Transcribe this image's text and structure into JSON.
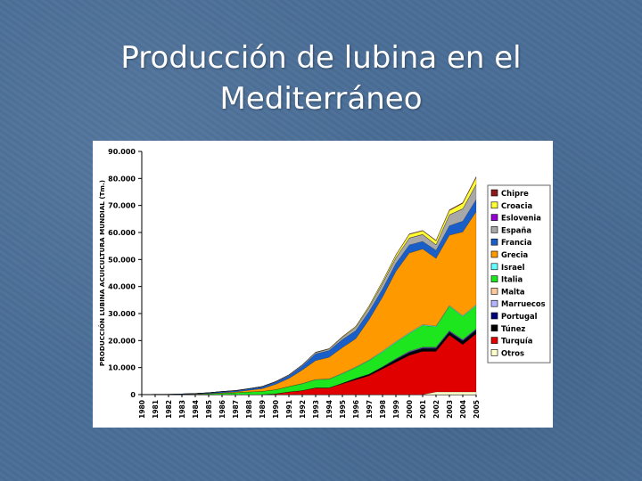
{
  "slide": {
    "title_line1": "Producción de lubina en el",
    "title_line2": "Mediterráneo"
  },
  "chart_data": {
    "type": "area",
    "stacked": true,
    "title": "",
    "xlabel": "",
    "ylabel": "PRODUCCIÓN LUBINA ACUICULTURA MUNDIAL (Tm.)",
    "ylim": [
      0,
      90000
    ],
    "yticks": [
      0,
      10000,
      20000,
      30000,
      40000,
      50000,
      60000,
      70000,
      80000,
      90000
    ],
    "ytick_labels": [
      "0",
      "10.000",
      "20.000",
      "30.000",
      "40.000",
      "50.000",
      "60.000",
      "70.000",
      "80.000",
      "90.000"
    ],
    "grid": false,
    "legend": "right",
    "categories": [
      "1980",
      "1981",
      "1982",
      "1983",
      "1984",
      "1985",
      "1986",
      "1987",
      "1988",
      "1989",
      "1990",
      "1991",
      "1992",
      "1993",
      "1994",
      "1995",
      "1996",
      "1997",
      "1998",
      "1999",
      "2000",
      "2001",
      "2002",
      "2003",
      "2004",
      "2005"
    ],
    "series": [
      {
        "name": "Otros",
        "color": "#ffffcc",
        "values": [
          0,
          0,
          0,
          0,
          0,
          0,
          0,
          0,
          0,
          0,
          0,
          0,
          0,
          0,
          0,
          0,
          0,
          0,
          0,
          0,
          0,
          0,
          1000,
          1000,
          1000,
          1000
        ]
      },
      {
        "name": "Turquía",
        "color": "#e00000",
        "values": [
          0,
          0,
          0,
          0,
          0,
          0,
          0,
          0,
          0,
          0,
          300,
          1000,
          1500,
          2500,
          2500,
          4000,
          5500,
          7000,
          9500,
          12000,
          14500,
          16000,
          15000,
          21000,
          17500,
          21500
        ]
      },
      {
        "name": "Túnez",
        "color": "#000000",
        "values": [
          0,
          0,
          0,
          0,
          0,
          0,
          0,
          0,
          0,
          0,
          0,
          0,
          0,
          0,
          0,
          200,
          300,
          400,
          500,
          800,
          1000,
          1000,
          1000,
          1000,
          1200,
          1200
        ]
      },
      {
        "name": "Portugal",
        "color": "#00007a",
        "values": [
          0,
          0,
          0,
          0,
          0,
          0,
          0,
          0,
          0,
          0,
          0,
          0,
          0,
          0,
          0,
          0,
          200,
          200,
          200,
          300,
          300,
          300,
          300,
          400,
          400,
          400
        ]
      },
      {
        "name": "Marruecos",
        "color": "#b4b4ff",
        "values": [
          0,
          0,
          0,
          0,
          0,
          0,
          0,
          0,
          0,
          0,
          0,
          0,
          0,
          0,
          0,
          0,
          0,
          0,
          100,
          100,
          200,
          200,
          200,
          200,
          200,
          200
        ]
      },
      {
        "name": "Malta",
        "color": "#ffc89a",
        "values": [
          0,
          0,
          0,
          0,
          0,
          0,
          0,
          0,
          0,
          0,
          0,
          0,
          0,
          0,
          0,
          0,
          0,
          0,
          0,
          100,
          100,
          100,
          100,
          100,
          100,
          100
        ]
      },
      {
        "name": "Italia",
        "color": "#1ee61e",
        "values": [
          0,
          0,
          0,
          50,
          100,
          300,
          500,
          700,
          1000,
          1200,
          1500,
          2000,
          2500,
          3000,
          3200,
          3500,
          4000,
          5000,
          5500,
          6000,
          6500,
          8000,
          7500,
          9000,
          8500,
          8500
        ]
      },
      {
        "name": "Israel",
        "color": "#66ffff",
        "values": [
          0,
          0,
          0,
          0,
          0,
          0,
          0,
          0,
          0,
          0,
          0,
          0,
          100,
          100,
          100,
          200,
          200,
          200,
          300,
          300,
          300,
          300,
          300,
          300,
          300,
          300
        ]
      },
      {
        "name": "Grecia",
        "color": "#ff9900",
        "values": [
          0,
          0,
          0,
          0,
          100,
          100,
          200,
          300,
          600,
          1000,
          2000,
          3000,
          5000,
          7000,
          8000,
          9500,
          10500,
          15000,
          20000,
          26000,
          29500,
          28000,
          25000,
          26000,
          31000,
          34500
        ]
      },
      {
        "name": "Francia",
        "color": "#1a5fc8",
        "values": [
          50,
          100,
          100,
          200,
          200,
          300,
          400,
          400,
          500,
          600,
          800,
          1000,
          1500,
          2500,
          2500,
          3000,
          3000,
          3000,
          3000,
          3000,
          3000,
          2800,
          3000,
          3500,
          4000,
          4500
        ]
      },
      {
        "name": "España",
        "color": "#a8a8a8",
        "values": [
          0,
          0,
          0,
          0,
          0,
          0,
          50,
          100,
          100,
          200,
          200,
          300,
          400,
          500,
          600,
          800,
          1200,
          1500,
          2000,
          2000,
          2500,
          2500,
          2000,
          4000,
          4500,
          5500
        ]
      },
      {
        "name": "Eslovenia",
        "color": "#9400d3",
        "values": [
          0,
          0,
          0,
          0,
          0,
          0,
          0,
          0,
          0,
          0,
          0,
          0,
          0,
          0,
          0,
          0,
          0,
          0,
          100,
          100,
          100,
          100,
          100,
          100,
          100,
          100
        ]
      },
      {
        "name": "Croacia",
        "color": "#ffff33",
        "values": [
          0,
          0,
          0,
          0,
          0,
          0,
          0,
          0,
          0,
          0,
          0,
          0,
          0,
          100,
          100,
          200,
          300,
          500,
          700,
          900,
          1300,
          1300,
          1400,
          1500,
          2000,
          2500
        ]
      },
      {
        "name": "Chipre",
        "color": "#8b1a1a",
        "values": [
          0,
          0,
          0,
          0,
          0,
          0,
          0,
          0,
          0,
          0,
          0,
          0,
          0,
          0,
          0,
          100,
          100,
          100,
          100,
          200,
          200,
          200,
          200,
          300,
          300,
          400
        ]
      }
    ],
    "legend_order": [
      "Chipre",
      "Croacia",
      "Eslovenia",
      "España",
      "Francia",
      "Grecia",
      "Israel",
      "Italia",
      "Malta",
      "Marruecos",
      "Portugal",
      "Túnez",
      "Turquía",
      "Otros"
    ]
  }
}
